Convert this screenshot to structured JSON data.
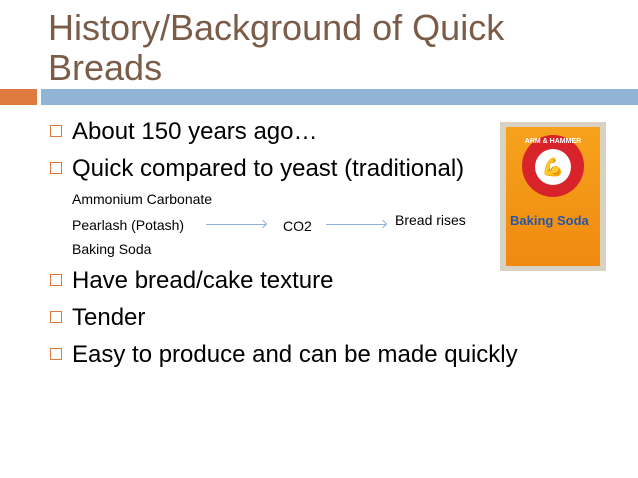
{
  "title": "History/Background of Quick Breads",
  "bullets": [
    "About 150 years ago…",
    "Quick compared to yeast (traditional)",
    "Have bread/cake texture",
    "Tender",
    "Easy to produce and can be made quickly"
  ],
  "leaveners": [
    "Ammonium Carbonate",
    "Pearlash (Potash)",
    "Baking Soda"
  ],
  "co2": "CO2",
  "result": "Bread rises",
  "image": {
    "brand": "ARM & HAMMER",
    "product": "Baking Soda"
  },
  "colors": {
    "title": "#7a5c48",
    "accent_orange": "#e07b3f",
    "accent_blue": "#91b4d4"
  }
}
